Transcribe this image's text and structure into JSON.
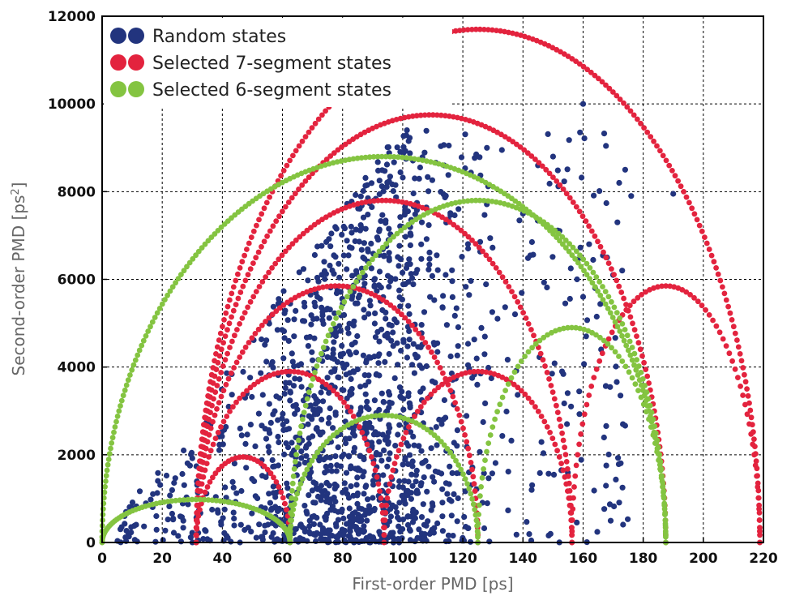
{
  "chart_data": {
    "type": "scatter",
    "xlabel": "First-order PMD [ps]",
    "ylabel_main": "Second-order PMD [ps",
    "ylabel_sup": "2",
    "ylabel_end": "]",
    "xlim": [
      0,
      220
    ],
    "ylim": [
      0,
      12000
    ],
    "x_ticks": [
      0,
      20,
      40,
      60,
      80,
      100,
      120,
      140,
      160,
      180,
      200,
      220
    ],
    "y_ticks": [
      0,
      2000,
      4000,
      6000,
      8000,
      10000,
      12000
    ],
    "grid": true,
    "legend_position": "top-left",
    "series": [
      {
        "name": "Random states",
        "color": "#22347e",
        "kind": "cloud",
        "cloud": {
          "count": 1500,
          "seed": 7,
          "xmin": 5,
          "xmax": 175,
          "peak_x": 85,
          "upper_envelope_slope": 100,
          "max_y": 10000
        },
        "outliers": [
          [
            160,
            10000
          ],
          [
            159,
            9350
          ],
          [
            174,
            8500
          ],
          [
            172,
            8200
          ],
          [
            176,
            7900
          ],
          [
            190,
            7950
          ],
          [
            128,
            9000
          ],
          [
            133,
            8950
          ],
          [
            150,
            8800
          ],
          [
            145,
            8600
          ],
          [
            162,
            6800
          ],
          [
            168,
            6500
          ],
          [
            173,
            6200
          ],
          [
            164,
            5800
          ],
          [
            158,
            6000
          ],
          [
            161,
            4700
          ],
          [
            143,
            6850
          ],
          [
            170,
            6100
          ],
          [
            153,
            3900
          ],
          [
            156,
            3100
          ],
          [
            166,
            4400
          ],
          [
            160,
            5600
          ],
          [
            140,
            7500
          ],
          [
            148,
            7200
          ]
        ]
      },
      {
        "name": "Selected 7-segment states",
        "color": "#e3233e",
        "arcs": [
          {
            "x0": 31.3,
            "x1": 218.8,
            "peak": 11700
          },
          {
            "x0": 31.3,
            "x1": 187.5,
            "peak": 9750
          },
          {
            "x0": 31.3,
            "x1": 156.3,
            "peak": 7800
          },
          {
            "x0": 31.3,
            "x1": 125.0,
            "peak": 5850
          },
          {
            "x0": 31.3,
            "x1": 93.8,
            "peak": 3900
          },
          {
            "x0": 31.3,
            "x1": 62.5,
            "peak": 1950
          },
          {
            "x0": 93.8,
            "x1": 156.3,
            "peak": 3900
          },
          {
            "x0": 156.3,
            "x1": 218.8,
            "peak": 5850
          }
        ]
      },
      {
        "name": "Selected 6-segment states",
        "color": "#84c441",
        "arcs": [
          {
            "x0": 0,
            "x1": 187.5,
            "peak": 8800
          },
          {
            "x0": 0,
            "x1": 62.5,
            "peak": 980
          },
          {
            "x0": 62.5,
            "x1": 125.0,
            "peak": 2900
          },
          {
            "x0": 62.5,
            "x1": 187.5,
            "peak": 7800
          },
          {
            "x0": 125.0,
            "x1": 187.5,
            "peak": 4900
          }
        ]
      }
    ]
  }
}
